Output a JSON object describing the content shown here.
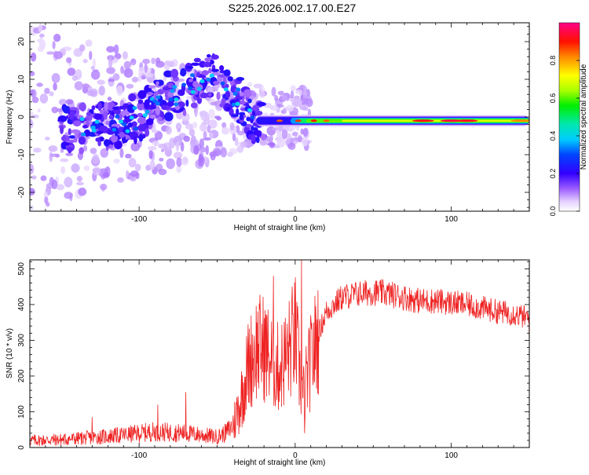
{
  "chart_data": [
    {
      "type": "heatmap",
      "title": "S225.2026.002.17.00.E27",
      "xlabel": "Height of straight line (km)",
      "ylabel": "Frequency (Hz)",
      "xlim": [
        -170,
        150
      ],
      "ylim": [
        -25,
        25
      ],
      "xticks": [
        -100,
        0,
        100
      ],
      "xtick_labels": [
        "-100",
        "0",
        "100"
      ],
      "yticks": [
        -20,
        -10,
        0,
        10,
        20
      ],
      "ytick_labels": [
        "-20",
        "-10",
        "0",
        "10",
        "20"
      ],
      "colorbar": {
        "label": "Normalized spectral amplitude",
        "range": [
          0,
          1
        ],
        "ticks": [
          0,
          0.2,
          0.4,
          0.6,
          0.8
        ],
        "tick_labels": [
          "0.0",
          "0.2",
          "0.4",
          "0.6",
          "0.8"
        ],
        "colormap": "rainbow (white-violet-blue-cyan-green-yellow-red-magenta)"
      },
      "ridge": [
        {
          "x": -145,
          "f": -3,
          "amp": 0.3
        },
        {
          "x": -130,
          "f": -3,
          "amp": 0.25
        },
        {
          "x": -115,
          "f": -2,
          "amp": 0.25
        },
        {
          "x": -100,
          "f": 0,
          "amp": 0.25
        },
        {
          "x": -85,
          "f": 5,
          "amp": 0.3
        },
        {
          "x": -70,
          "f": 7,
          "amp": 0.3
        },
        {
          "x": -55,
          "f": 12,
          "amp": 0.35
        },
        {
          "x": -45,
          "f": 8,
          "amp": 0.35
        },
        {
          "x": -35,
          "f": 4,
          "amp": 0.3
        },
        {
          "x": -25,
          "f": -2,
          "amp": 0.35
        },
        {
          "x": -15,
          "f": -1,
          "amp": 0.6
        },
        {
          "x": 0,
          "f": -1,
          "amp": 0.7
        },
        {
          "x": 20,
          "f": -1,
          "amp": 0.75
        },
        {
          "x": 50,
          "f": -1,
          "amp": 0.75
        },
        {
          "x": 80,
          "f": -1,
          "amp": 0.8
        },
        {
          "x": 110,
          "f": -1,
          "amp": 0.9
        },
        {
          "x": 150,
          "f": -1,
          "amp": 0.8
        }
      ]
    },
    {
      "type": "line",
      "xlabel": "Height of straight line (km)",
      "ylabel": "SNR (10 * v/v)",
      "xlim": [
        -170,
        150
      ],
      "ylim": [
        0,
        525
      ],
      "xticks": [
        -100,
        0,
        100
      ],
      "xtick_labels": [
        "-100",
        "0",
        "100"
      ],
      "yticks": [
        0,
        100,
        200,
        300,
        400,
        500
      ],
      "ytick_labels": [
        "0",
        "100",
        "200",
        "300",
        "400",
        "500"
      ],
      "line_color": "#ee2222",
      "series": [
        {
          "name": "SNR",
          "x": [
            -170,
            -150,
            -130,
            -110,
            -100,
            -90,
            -80,
            -70,
            -60,
            -50,
            -45,
            -40,
            -35,
            -30,
            -25,
            -20,
            -15,
            -10,
            -5,
            0,
            3,
            5,
            8,
            10,
            15,
            20,
            30,
            40,
            50,
            60,
            70,
            80,
            90,
            100,
            110,
            120,
            130,
            140,
            150
          ],
          "y": [
            20,
            22,
            28,
            35,
            40,
            45,
            42,
            40,
            35,
            30,
            40,
            60,
            130,
            230,
            280,
            280,
            240,
            220,
            260,
            320,
            200,
            140,
            200,
            240,
            320,
            380,
            420,
            430,
            435,
            430,
            420,
            410,
            410,
            405,
            400,
            390,
            380,
            375,
            360
          ]
        }
      ],
      "spikes": [
        {
          "x": -130,
          "y": 85
        },
        {
          "x": -88,
          "y": 120
        },
        {
          "x": -70,
          "y": 155
        },
        {
          "x": -14,
          "y": 480
        },
        {
          "x": 4,
          "y": 525
        },
        {
          "x": 6,
          "y": 40
        },
        {
          "x": 150,
          "y": 285
        }
      ]
    }
  ]
}
